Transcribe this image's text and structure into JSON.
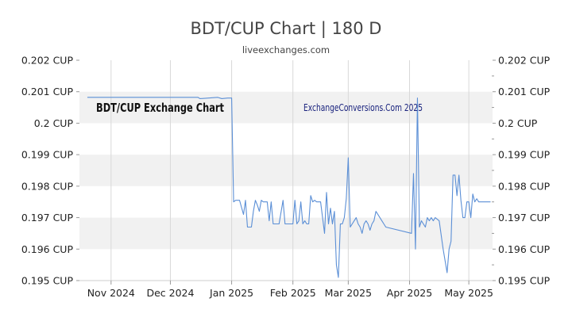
{
  "header": {
    "title": "BDT/CUP Chart | 180 D",
    "subtitle": "liveexchanges.com"
  },
  "chart_data": {
    "type": "line",
    "title": "BDT/CUP Chart | 180 D",
    "xlabel": "",
    "ylabel": "",
    "x_tick_labels": [
      "Nov 2024",
      "Dec 2024",
      "Jan 2025",
      "Feb 2025",
      "Mar 2025",
      "Apr 2025",
      "May 2025"
    ],
    "x_ticks": [
      "2024-11-01",
      "2024-12-01",
      "2025-01-01",
      "2025-02-01",
      "2025-03-01",
      "2025-04-01",
      "2025-05-01"
    ],
    "xlim": [
      "2024-10-16",
      "2025-05-13"
    ],
    "ylim": [
      0.195,
      0.202
    ],
    "y_tick_labels": [
      "0.202 CUP",
      "0.201 CUP",
      "0.2 CUP",
      "0.199 CUP",
      "0.198 CUP",
      "0.197 CUP",
      "0.196 CUP",
      "0.195 CUP"
    ],
    "y_ticks": [
      0.202,
      0.201,
      0.2,
      0.199,
      0.198,
      0.197,
      0.196,
      0.195
    ],
    "grid": "alternating horizontal bands, vertical gridlines at month ticks",
    "line_color": "#5b8fd6",
    "band_color": "#f1f1f1",
    "annotations": [
      "BDT/CUP Exchange Chart",
      "ExchangeConversions.Com 2025"
    ],
    "series": [
      {
        "x": [
          "2024-10-20",
          "2024-11-10",
          "2024-12-01",
          "2024-12-15",
          "2024-12-16",
          "2024-12-25",
          "2024-12-27",
          "2024-12-30",
          "2025-01-01",
          "2025-01-02",
          "2025-01-03",
          "2025-01-05",
          "2025-01-07",
          "2025-01-08",
          "2025-01-09",
          "2025-01-10",
          "2025-01-11",
          "2025-01-12",
          "2025-01-13",
          "2025-01-14",
          "2025-01-15",
          "2025-01-16",
          "2025-01-17",
          "2025-01-19",
          "2025-01-20",
          "2025-01-21",
          "2025-01-22",
          "2025-01-23",
          "2025-01-24",
          "2025-01-25",
          "2025-01-27",
          "2025-01-28",
          "2025-01-29",
          "2025-01-30",
          "2025-02-01",
          "2025-02-02",
          "2025-02-03",
          "2025-02-04",
          "2025-02-05",
          "2025-02-06",
          "2025-02-07",
          "2025-02-08",
          "2025-02-09",
          "2025-02-10",
          "2025-02-11",
          "2025-02-12",
          "2025-02-13",
          "2025-02-14",
          "2025-02-15",
          "2025-02-17",
          "2025-02-18",
          "2025-02-19",
          "2025-02-20",
          "2025-02-21",
          "2025-02-22",
          "2025-02-23",
          "2025-02-24",
          "2025-02-25",
          "2025-02-26",
          "2025-02-27",
          "2025-02-28",
          "2025-03-01",
          "2025-03-02",
          "2025-03-03",
          "2025-03-04",
          "2025-03-05",
          "2025-03-06",
          "2025-03-07",
          "2025-03-08",
          "2025-03-09",
          "2025-03-10",
          "2025-03-11",
          "2025-03-12",
          "2025-03-13",
          "2025-03-14",
          "2025-03-15",
          "2025-03-17",
          "2025-03-18",
          "2025-03-19",
          "2025-03-20",
          "2025-04-02",
          "2025-04-03",
          "2025-04-04",
          "2025-04-05",
          "2025-04-06",
          "2025-04-07",
          "2025-04-08",
          "2025-04-09",
          "2025-04-10",
          "2025-04-11",
          "2025-04-12",
          "2025-04-13",
          "2025-04-14",
          "2025-04-16",
          "2025-04-18",
          "2025-04-20",
          "2025-04-21",
          "2025-04-22",
          "2025-04-23",
          "2025-04-24",
          "2025-04-25",
          "2025-04-26",
          "2025-04-27",
          "2025-04-28",
          "2025-04-29",
          "2025-04-30",
          "2025-05-01",
          "2025-05-02",
          "2025-05-03",
          "2025-05-04",
          "2025-05-05",
          "2025-05-06",
          "2025-05-07",
          "2025-05-08",
          "2025-05-09",
          "2025-05-10",
          "2025-05-11",
          "2025-05-12"
        ],
        "y": [
          0.20082,
          0.20082,
          0.20082,
          0.20082,
          0.20078,
          0.20082,
          0.20078,
          0.2008,
          0.2008,
          0.1975,
          0.19755,
          0.19755,
          0.1971,
          0.19755,
          0.1967,
          0.1967,
          0.1967,
          0.1972,
          0.19755,
          0.1974,
          0.1972,
          0.19755,
          0.1975,
          0.1975,
          0.1969,
          0.1975,
          0.1968,
          0.1968,
          0.1968,
          0.1968,
          0.19755,
          0.1968,
          0.1968,
          0.1968,
          0.1968,
          0.19755,
          0.1968,
          0.1969,
          0.1975,
          0.1968,
          0.1969,
          0.1968,
          0.1968,
          0.1977,
          0.1975,
          0.19755,
          0.1975,
          0.1975,
          0.1975,
          0.1965,
          0.1978,
          0.1968,
          0.1973,
          0.1968,
          0.1972,
          0.1955,
          0.1951,
          0.1968,
          0.1968,
          0.197,
          0.1976,
          0.1989,
          0.1967,
          0.1968,
          0.1969,
          0.197,
          0.1968,
          0.1967,
          0.1965,
          0.1968,
          0.1969,
          0.1968,
          0.1966,
          0.1968,
          0.1969,
          0.1972,
          0.197,
          0.1969,
          0.1968,
          0.1967,
          0.1965,
          0.1984,
          0.196,
          0.2008,
          0.1967,
          0.1969,
          0.1968,
          0.1967,
          0.197,
          0.1969,
          0.197,
          0.1969,
          0.197,
          0.1969,
          0.196,
          0.19525,
          0.196,
          0.19625,
          0.19835,
          0.19835,
          0.1977,
          0.19835,
          0.19755,
          0.197,
          0.197,
          0.1975,
          0.1975,
          0.197,
          0.19775,
          0.1975,
          0.1976,
          0.1975,
          0.1975,
          0.1975,
          0.1975,
          0.1975,
          0.1975,
          0.1975
        ]
      }
    ]
  }
}
